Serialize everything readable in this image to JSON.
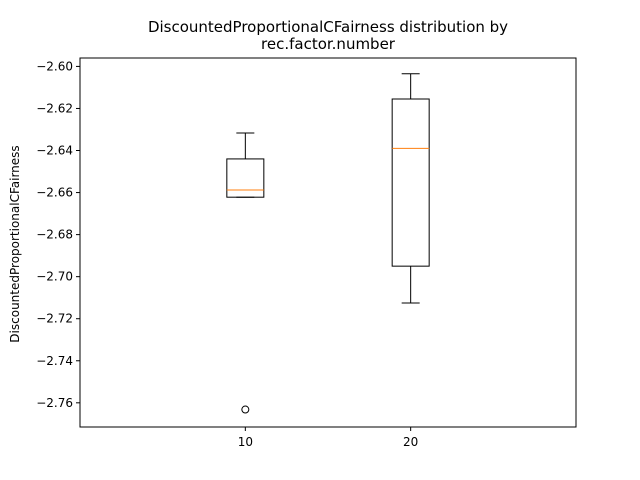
{
  "chart_data": {
    "type": "box",
    "title_lines": [
      "DiscountedProportionalCFairness distribution by",
      "rec.factor.number"
    ],
    "xlabel": "",
    "ylabel": "DiscountedProportionalCFairness",
    "categories": [
      "10",
      "20"
    ],
    "ylim": [
      -2.7715,
      -2.596
    ],
    "yticks": [
      -2.6,
      -2.62,
      -2.64,
      -2.66,
      -2.68,
      -2.7,
      -2.72,
      -2.74,
      -2.76
    ],
    "ytick_labels": [
      "−2.60",
      "−2.62",
      "−2.64",
      "−2.66",
      "−2.68",
      "−2.70",
      "−2.72",
      "−2.74",
      "−2.76"
    ],
    "grid": false,
    "boxes": [
      {
        "category": "10",
        "whisker_low": -2.6622,
        "q1": -2.6622,
        "median": -2.6588,
        "q3": -2.644,
        "whisker_high": -2.6317,
        "outliers": [
          -2.7632
        ]
      },
      {
        "category": "20",
        "whisker_low": -2.7125,
        "q1": -2.695,
        "median": -2.639,
        "q3": -2.6155,
        "whisker_high": -2.6035,
        "outliers": []
      }
    ],
    "colors": {
      "box": "#000000",
      "median": "#ff7f0e"
    }
  }
}
